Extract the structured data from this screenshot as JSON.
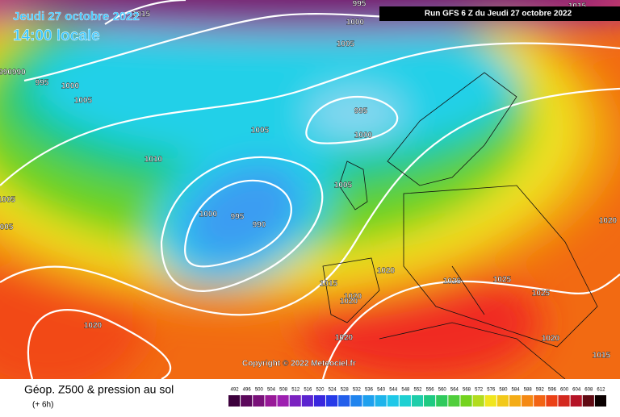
{
  "header": {
    "date": "Jeudi 27 octobre 2022",
    "time": "14:00 locale",
    "run": "Run GFS 6 Z du Jeudi 27 octobre 2022"
  },
  "copyright": "Copyright © 2022 Meteociel.fr",
  "footer": {
    "title": "Géop. Z500 & pression au sol",
    "subtitle": "(+ 6h)"
  },
  "isobar_labels": [
    "1015",
    "995",
    "1015",
    "1000",
    "1005",
    "990990",
    "995",
    "1000",
    "1005",
    "995",
    "1005",
    "1000",
    "1010",
    "1005",
    "1000",
    "995",
    "990",
    "1005",
    "005",
    "1020",
    "1020",
    "1025",
    "1025",
    "1015",
    "1025",
    "1020",
    "1020",
    "1020",
    "1020",
    "1020",
    "1015"
  ],
  "scale": [
    492,
    496,
    500,
    504,
    508,
    512,
    516,
    520,
    524,
    528,
    532,
    536,
    540,
    544,
    548,
    552,
    556,
    560,
    564,
    568,
    572,
    576,
    580,
    584,
    588,
    592,
    596,
    600,
    604,
    608,
    612
  ]
}
